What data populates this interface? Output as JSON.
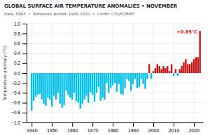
{
  "chart_data": {
    "type": "bar",
    "title": "GLOBAL SURFACE AIR TEMPERATURE ANOMALIES • NOVEMBER",
    "subtitle": "Data: ERA5  •  Reference period: 1991–2020  •  Credit: C3S/ECMWF",
    "ylabel": "Temperature anomaly (°C)",
    "annotation": "+0.85°C",
    "x": [
      1940,
      1941,
      1942,
      1943,
      1944,
      1945,
      1946,
      1947,
      1948,
      1949,
      1950,
      1951,
      1952,
      1953,
      1954,
      1955,
      1956,
      1957,
      1958,
      1959,
      1960,
      1961,
      1962,
      1963,
      1964,
      1965,
      1966,
      1967,
      1968,
      1969,
      1970,
      1971,
      1972,
      1973,
      1974,
      1975,
      1976,
      1977,
      1978,
      1979,
      1980,
      1981,
      1982,
      1983,
      1984,
      1985,
      1986,
      1987,
      1988,
      1989,
      1990,
      1991,
      1992,
      1993,
      1994,
      1995,
      1996,
      1997,
      1998,
      1999,
      2000,
      2001,
      2002,
      2003,
      2004,
      2005,
      2006,
      2007,
      2008,
      2009,
      2010,
      2011,
      2012,
      2013,
      2014,
      2015,
      2016,
      2017,
      2018,
      2019,
      2020,
      2021,
      2022,
      2023
    ],
    "values": [
      -0.76,
      -0.56,
      -0.48,
      -0.44,
      -0.42,
      -0.53,
      -0.62,
      -0.66,
      -0.5,
      -0.54,
      -0.68,
      -0.46,
      -0.54,
      -0.4,
      -0.62,
      -0.7,
      -0.65,
      -0.36,
      -0.44,
      -0.5,
      -0.54,
      -0.4,
      -0.57,
      -0.6,
      -0.72,
      -0.63,
      -0.54,
      -0.46,
      -0.6,
      -0.38,
      -0.44,
      -0.58,
      -0.4,
      -0.28,
      -0.56,
      -0.5,
      -0.54,
      -0.2,
      -0.4,
      -0.3,
      -0.25,
      -0.2,
      -0.38,
      -0.22,
      -0.42,
      -0.44,
      -0.3,
      -0.12,
      -0.16,
      -0.36,
      -0.22,
      -0.12,
      -0.3,
      -0.28,
      -0.12,
      -0.22,
      -0.32,
      -0.12,
      0.18,
      -0.12,
      0.04,
      0.1,
      0.18,
      0.14,
      0.08,
      0.14,
      0.1,
      0.14,
      0.04,
      0.18,
      -0.06,
      0.08,
      -0.06,
      0.08,
      0.14,
      0.22,
      0.28,
      0.18,
      0.18,
      0.22,
      0.28,
      0.32,
      0.32,
      0.85
    ],
    "colors": [
      "#00c0f0",
      "#00c0f0",
      "#00c0f0",
      "#00c0f0",
      "#00c0f0",
      "#00c0f0",
      "#00c0f0",
      "#00c0f0",
      "#00c0f0",
      "#00c0f0",
      "#00c0f0",
      "#00c0f0",
      "#00c0f0",
      "#00c0f0",
      "#00c0f0",
      "#00c0f0",
      "#00c0f0",
      "#00c0f0",
      "#00c0f0",
      "#00c0f0",
      "#00c0f0",
      "#00c0f0",
      "#00c0f0",
      "#00c0f0",
      "#00c0f0",
      "#00c0f0",
      "#00c0f0",
      "#00c0f0",
      "#00c0f0",
      "#00c0f0",
      "#00c0f0",
      "#00c0f0",
      "#00c0f0",
      "#00c0f0",
      "#00c0f0",
      "#00c0f0",
      "#00c0f0",
      "#00c0f0",
      "#00c0f0",
      "#00c0f0",
      "#00c0f0",
      "#00c0f0",
      "#00c0f0",
      "#00c0f0",
      "#00c0f0",
      "#00c0f0",
      "#00c0f0",
      "#00c0f0",
      "#00c0f0",
      "#00c0f0",
      "#00c0f0",
      "#00c0f0",
      "#00c0f0",
      "#00c0f0",
      "#00c0f0",
      "#00c0f0",
      "#00c0f0",
      "#00c0f0",
      "#cc1111",
      "#00c0f0",
      "#cc1111",
      "#cc1111",
      "#cc1111",
      "#cc1111",
      "#cc1111",
      "#cc1111",
      "#cc1111",
      "#cc1111",
      "#cc1111",
      "#cc1111",
      "#00c0f0",
      "#cc1111",
      "#00c0f0",
      "#cc1111",
      "#cc1111",
      "#cc1111",
      "#cc1111",
      "#cc1111",
      "#cc1111",
      "#cc1111",
      "#cc1111",
      "#cc1111",
      "#cc1111",
      "#cc1111"
    ],
    "xlim": [
      1937.5,
      2024.5
    ],
    "ylim": [
      -1.0,
      1.0
    ],
    "xticks": [
      1940,
      1950,
      1960,
      1970,
      1980,
      1990,
      2000,
      2010,
      2020
    ],
    "yticks": [
      {
        "value": -1.0,
        "label": "−1.0"
      },
      {
        "value": -0.8,
        "label": "−0.8"
      },
      {
        "value": -0.6,
        "label": "−0.6"
      },
      {
        "value": -0.4,
        "label": "−0.4"
      },
      {
        "value": -0.2,
        "label": "−0.2"
      },
      {
        "value": 0.0,
        "label": "0.0"
      },
      {
        "value": 0.2,
        "label": "0.2"
      },
      {
        "value": 0.4,
        "label": "0.4"
      },
      {
        "value": 0.6,
        "label": "0.6"
      },
      {
        "value": 0.8,
        "label": "0.8"
      },
      {
        "value": 1.0,
        "label": "1.0"
      }
    ],
    "grid": true
  }
}
